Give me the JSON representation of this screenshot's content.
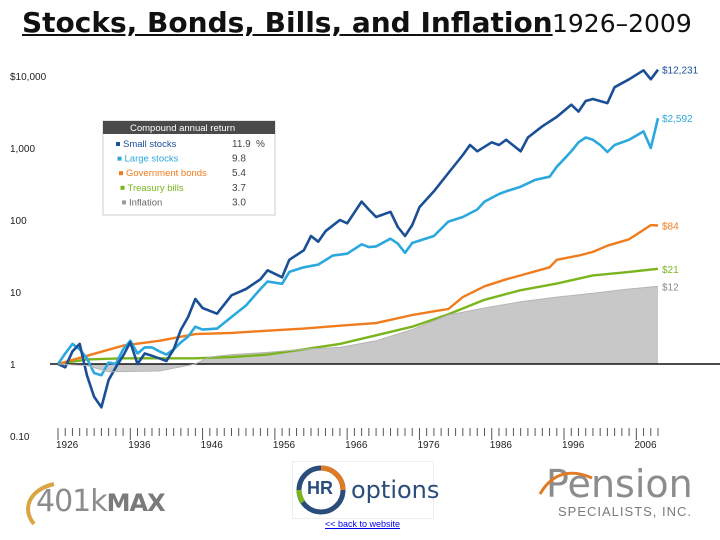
{
  "title": "Stocks, Bonds, Bills, and Inflation",
  "title_years": "1926–2009",
  "chart_data": {
    "type": "line",
    "yscale": "log",
    "ylim": [
      0.1,
      20000
    ],
    "xlim": [
      1926,
      2009
    ],
    "y_ticks": [
      {
        "value": 10000,
        "label": "$10,000"
      },
      {
        "value": 1000,
        "label": "1,000"
      },
      {
        "value": 100,
        "label": "100"
      },
      {
        "value": 10,
        "label": "10"
      },
      {
        "value": 1,
        "label": "1"
      },
      {
        "value": 0.1,
        "label": "0.10"
      }
    ],
    "x_tick_labels": [
      1926,
      1936,
      1946,
      1956,
      1966,
      1976,
      1986,
      1996,
      2006
    ],
    "legend": {
      "title": "Compound annual return",
      "placement": "upper-left",
      "unit": "%",
      "entries": [
        {
          "label": "Small stocks",
          "value": "11.9"
        },
        {
          "label": "Large stocks",
          "value": "9.8"
        },
        {
          "label": "Government bonds",
          "value": "5.4"
        },
        {
          "label": "Treasury bills",
          "value": "3.7"
        },
        {
          "label": "Inflation",
          "value": "3.0"
        }
      ]
    },
    "series": [
      {
        "name": "Small stocks",
        "color": "#1a4f96",
        "end_label": "$12,231",
        "x": [
          1926,
          1927,
          1928,
          1929,
          1930,
          1931,
          1932,
          1933,
          1934,
          1935,
          1936,
          1937,
          1938,
          1939,
          1940,
          1941,
          1942,
          1943,
          1944,
          1945,
          1946,
          1948,
          1950,
          1952,
          1954,
          1955,
          1957,
          1958,
          1960,
          1961,
          1962,
          1963,
          1965,
          1966,
          1968,
          1969,
          1970,
          1972,
          1973,
          1974,
          1975,
          1976,
          1978,
          1980,
          1982,
          1983,
          1984,
          1986,
          1987,
          1988,
          1990,
          1991,
          1993,
          1995,
          1997,
          1998,
          1999,
          2000,
          2002,
          2003,
          2005,
          2007,
          2008,
          2009
        ],
        "y": [
          1,
          0.9,
          1.5,
          1.9,
          0.7,
          0.35,
          0.25,
          0.6,
          0.9,
          1.3,
          2.0,
          1.0,
          1.4,
          1.3,
          1.2,
          1.1,
          1.6,
          3.0,
          4.5,
          8,
          6,
          5,
          9,
          11,
          15,
          20,
          16,
          28,
          38,
          60,
          50,
          70,
          100,
          90,
          180,
          140,
          110,
          130,
          80,
          60,
          85,
          150,
          250,
          450,
          800,
          1100,
          900,
          1200,
          1100,
          1300,
          900,
          1400,
          2000,
          2700,
          4000,
          3200,
          4500,
          4800,
          4200,
          7000,
          9000,
          12000,
          9000,
          12231
        ]
      },
      {
        "name": "Large stocks",
        "color": "#2ba8dd",
        "end_label": "$2,592",
        "x": [
          1926,
          1927,
          1928,
          1929,
          1930,
          1931,
          1932,
          1933,
          1934,
          1935,
          1936,
          1937,
          1938,
          1939,
          1940,
          1941,
          1942,
          1943,
          1944,
          1945,
          1946,
          1948,
          1950,
          1952,
          1954,
          1955,
          1957,
          1958,
          1960,
          1962,
          1964,
          1966,
          1968,
          1969,
          1970,
          1972,
          1973,
          1974,
          1975,
          1978,
          1980,
          1982,
          1984,
          1985,
          1987,
          1988,
          1990,
          1992,
          1994,
          1995,
          1996,
          1997,
          1998,
          1999,
          2000,
          2001,
          2002,
          2003,
          2005,
          2007,
          2008,
          2009
        ],
        "y": [
          1,
          1.4,
          1.9,
          1.6,
          1.2,
          0.75,
          0.7,
          1.05,
          1.0,
          1.6,
          2.1,
          1.4,
          1.7,
          1.7,
          1.5,
          1.35,
          1.6,
          2.0,
          2.4,
          3.3,
          3.0,
          3.1,
          4.5,
          6.5,
          11,
          14,
          13,
          19,
          22,
          24,
          32,
          34,
          46,
          42,
          43,
          55,
          47,
          35,
          48,
          60,
          95,
          110,
          140,
          180,
          230,
          250,
          290,
          360,
          400,
          550,
          700,
          900,
          1200,
          1400,
          1300,
          1100,
          880,
          1100,
          1300,
          1700,
          1000,
          2592
        ]
      },
      {
        "name": "Government bonds",
        "color": "#f07c1e",
        "end_label": "$84",
        "x": [
          1926,
          1930,
          1935,
          1940,
          1945,
          1950,
          1955,
          1960,
          1965,
          1970,
          1975,
          1978,
          1980,
          1982,
          1985,
          1988,
          1990,
          1994,
          1995,
          1998,
          2000,
          2002,
          2005,
          2008,
          2009
        ],
        "y": [
          1,
          1.3,
          1.8,
          2.1,
          2.6,
          2.7,
          2.9,
          3.1,
          3.4,
          3.7,
          4.8,
          5.4,
          5.8,
          8.5,
          12,
          15,
          17,
          22,
          28,
          32,
          36,
          44,
          54,
          85,
          84
        ]
      },
      {
        "name": "Treasury bills",
        "color": "#7ab51d",
        "end_label": "$21",
        "x": [
          1926,
          1930,
          1935,
          1940,
          1945,
          1950,
          1955,
          1960,
          1965,
          1970,
          1975,
          1980,
          1985,
          1990,
          1995,
          2000,
          2005,
          2009
        ],
        "y": [
          1,
          1.16,
          1.2,
          1.2,
          1.2,
          1.25,
          1.35,
          1.6,
          1.9,
          2.5,
          3.3,
          4.9,
          7.8,
          10.6,
          13.1,
          17,
          19,
          21
        ]
      },
      {
        "name": "Inflation",
        "color": "#c8c8c8",
        "end_label": "$12",
        "x": [
          1926,
          1930,
          1933,
          1940,
          1945,
          1947,
          1950,
          1955,
          1960,
          1965,
          1970,
          1975,
          1980,
          1985,
          1990,
          1995,
          2000,
          2005,
          2009
        ],
        "y": [
          1,
          0.95,
          0.78,
          0.8,
          1.0,
          1.25,
          1.35,
          1.45,
          1.6,
          1.7,
          2.1,
          3.0,
          4.8,
          6.0,
          7.3,
          8.5,
          9.6,
          11,
          12
        ]
      }
    ]
  },
  "logos": {
    "left": {
      "word": "401k",
      "bold": "MAX"
    },
    "mid": {
      "badge": "HR",
      "word": "options"
    },
    "right": {
      "word": "Pension",
      "sub": "SPECIALISTS, INC."
    }
  },
  "footer": {
    "link_text": "<< back to website"
  }
}
